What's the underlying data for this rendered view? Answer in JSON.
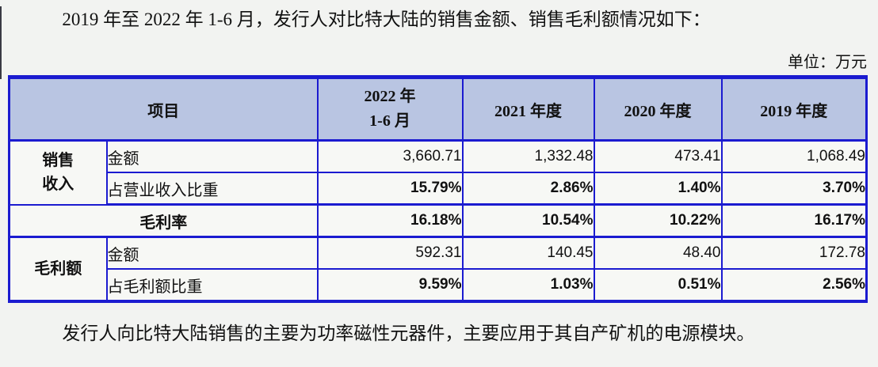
{
  "page": {
    "intro_text": "2019 年至 2022 年 1-6 月，发行人对比特大陆的销售金额、销售毛利额情况如下：",
    "unit_label": "单位：万元",
    "footer_text": "发行人向比特大陆销售的主要为功率磁性元器件，主要应用于其自产矿机的电源模块。"
  },
  "table": {
    "accent_border_color": "#1b1bd0",
    "header_bg_color": "#b9c5e2",
    "header": {
      "item": "项目",
      "period_2022": "2022 年\n1-6 月",
      "period_2021": "2021 年度",
      "period_2020": "2020 年度",
      "period_2019": "2019 年度"
    },
    "rows": {
      "sales_group_label": "销售\n收入",
      "sales_amount": {
        "label": "金额",
        "values": [
          "3,660.71",
          "1,332.48",
          "473.41",
          "1,068.49"
        ]
      },
      "sales_ratio": {
        "label": "占营业收入比重",
        "values": [
          "15.79%",
          "2.86%",
          "1.40%",
          "3.70%"
        ]
      },
      "gross_margin": {
        "label": "毛利率",
        "values": [
          "16.18%",
          "10.54%",
          "10.22%",
          "16.17%"
        ]
      },
      "profit_group_label": "毛利额",
      "profit_amount": {
        "label": "金额",
        "values": [
          "592.31",
          "140.45",
          "48.40",
          "172.78"
        ]
      },
      "profit_ratio": {
        "label": "占毛利额比重",
        "values": [
          "9.59%",
          "1.03%",
          "0.51%",
          "2.56%"
        ]
      }
    }
  },
  "chart_data": {
    "type": "table",
    "title": "发行人对比特大陆的销售金额、销售毛利额情况",
    "unit": "万元",
    "columns": [
      "项目",
      "2022 年 1-6 月",
      "2021 年度",
      "2020 年度",
      "2019 年度"
    ],
    "rows": [
      [
        "销售收入 金额",
        "3,660.71",
        "1,332.48",
        "473.41",
        "1,068.49"
      ],
      [
        "销售收入 占营业收入比重",
        "15.79%",
        "2.86%",
        "1.40%",
        "3.70%"
      ],
      [
        "毛利率",
        "16.18%",
        "10.54%",
        "10.22%",
        "16.17%"
      ],
      [
        "毛利额 金额",
        "592.31",
        "140.45",
        "48.40",
        "172.78"
      ],
      [
        "毛利额 占毛利额比重",
        "9.59%",
        "1.03%",
        "0.51%",
        "2.56%"
      ]
    ]
  }
}
